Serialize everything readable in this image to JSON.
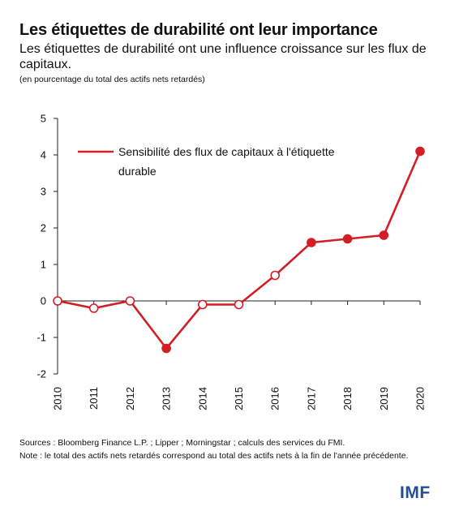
{
  "header": {
    "title": "Les étiquettes de durabilité ont leur importance",
    "subtitle": "Les étiquettes de durabilité ont une influence croissance sur les flux de capitaux.",
    "unit": "(en pourcentage du total des actifs nets retardés)"
  },
  "chart_data": {
    "type": "line",
    "x": [
      "2010",
      "2011",
      "2012",
      "2013",
      "2014",
      "2015",
      "2016",
      "2017",
      "2018",
      "2019",
      "2020"
    ],
    "series": [
      {
        "name": "Sensibilité des flux de capitaux à l'étiquette durable",
        "values": [
          0,
          -0.2,
          0,
          -1.3,
          -0.1,
          -0.1,
          0.7,
          1.6,
          1.7,
          1.8,
          4.1
        ],
        "filled": [
          false,
          false,
          false,
          true,
          false,
          false,
          false,
          true,
          true,
          true,
          true
        ]
      }
    ],
    "y_ticks": [
      "5",
      "4",
      "3",
      "2",
      "1",
      "0",
      "-1",
      "-2"
    ],
    "ylim": [
      -2,
      5
    ],
    "legend_lines": [
      "Sensibilité des flux de capitaux à l'étiquette",
      "durable"
    ],
    "legend_position": "top-left",
    "grid": false,
    "line_color": "#d21f26"
  },
  "footer": {
    "sources": "Sources : Bloomberg Finance L.P. ; Lipper ; Morningstar ; calculs des services du FMI.",
    "note": "Note : le total des actifs nets retardés correspond au total des actifs nets à la fin de l'année précédente."
  },
  "logo": {
    "text": "IMF"
  }
}
